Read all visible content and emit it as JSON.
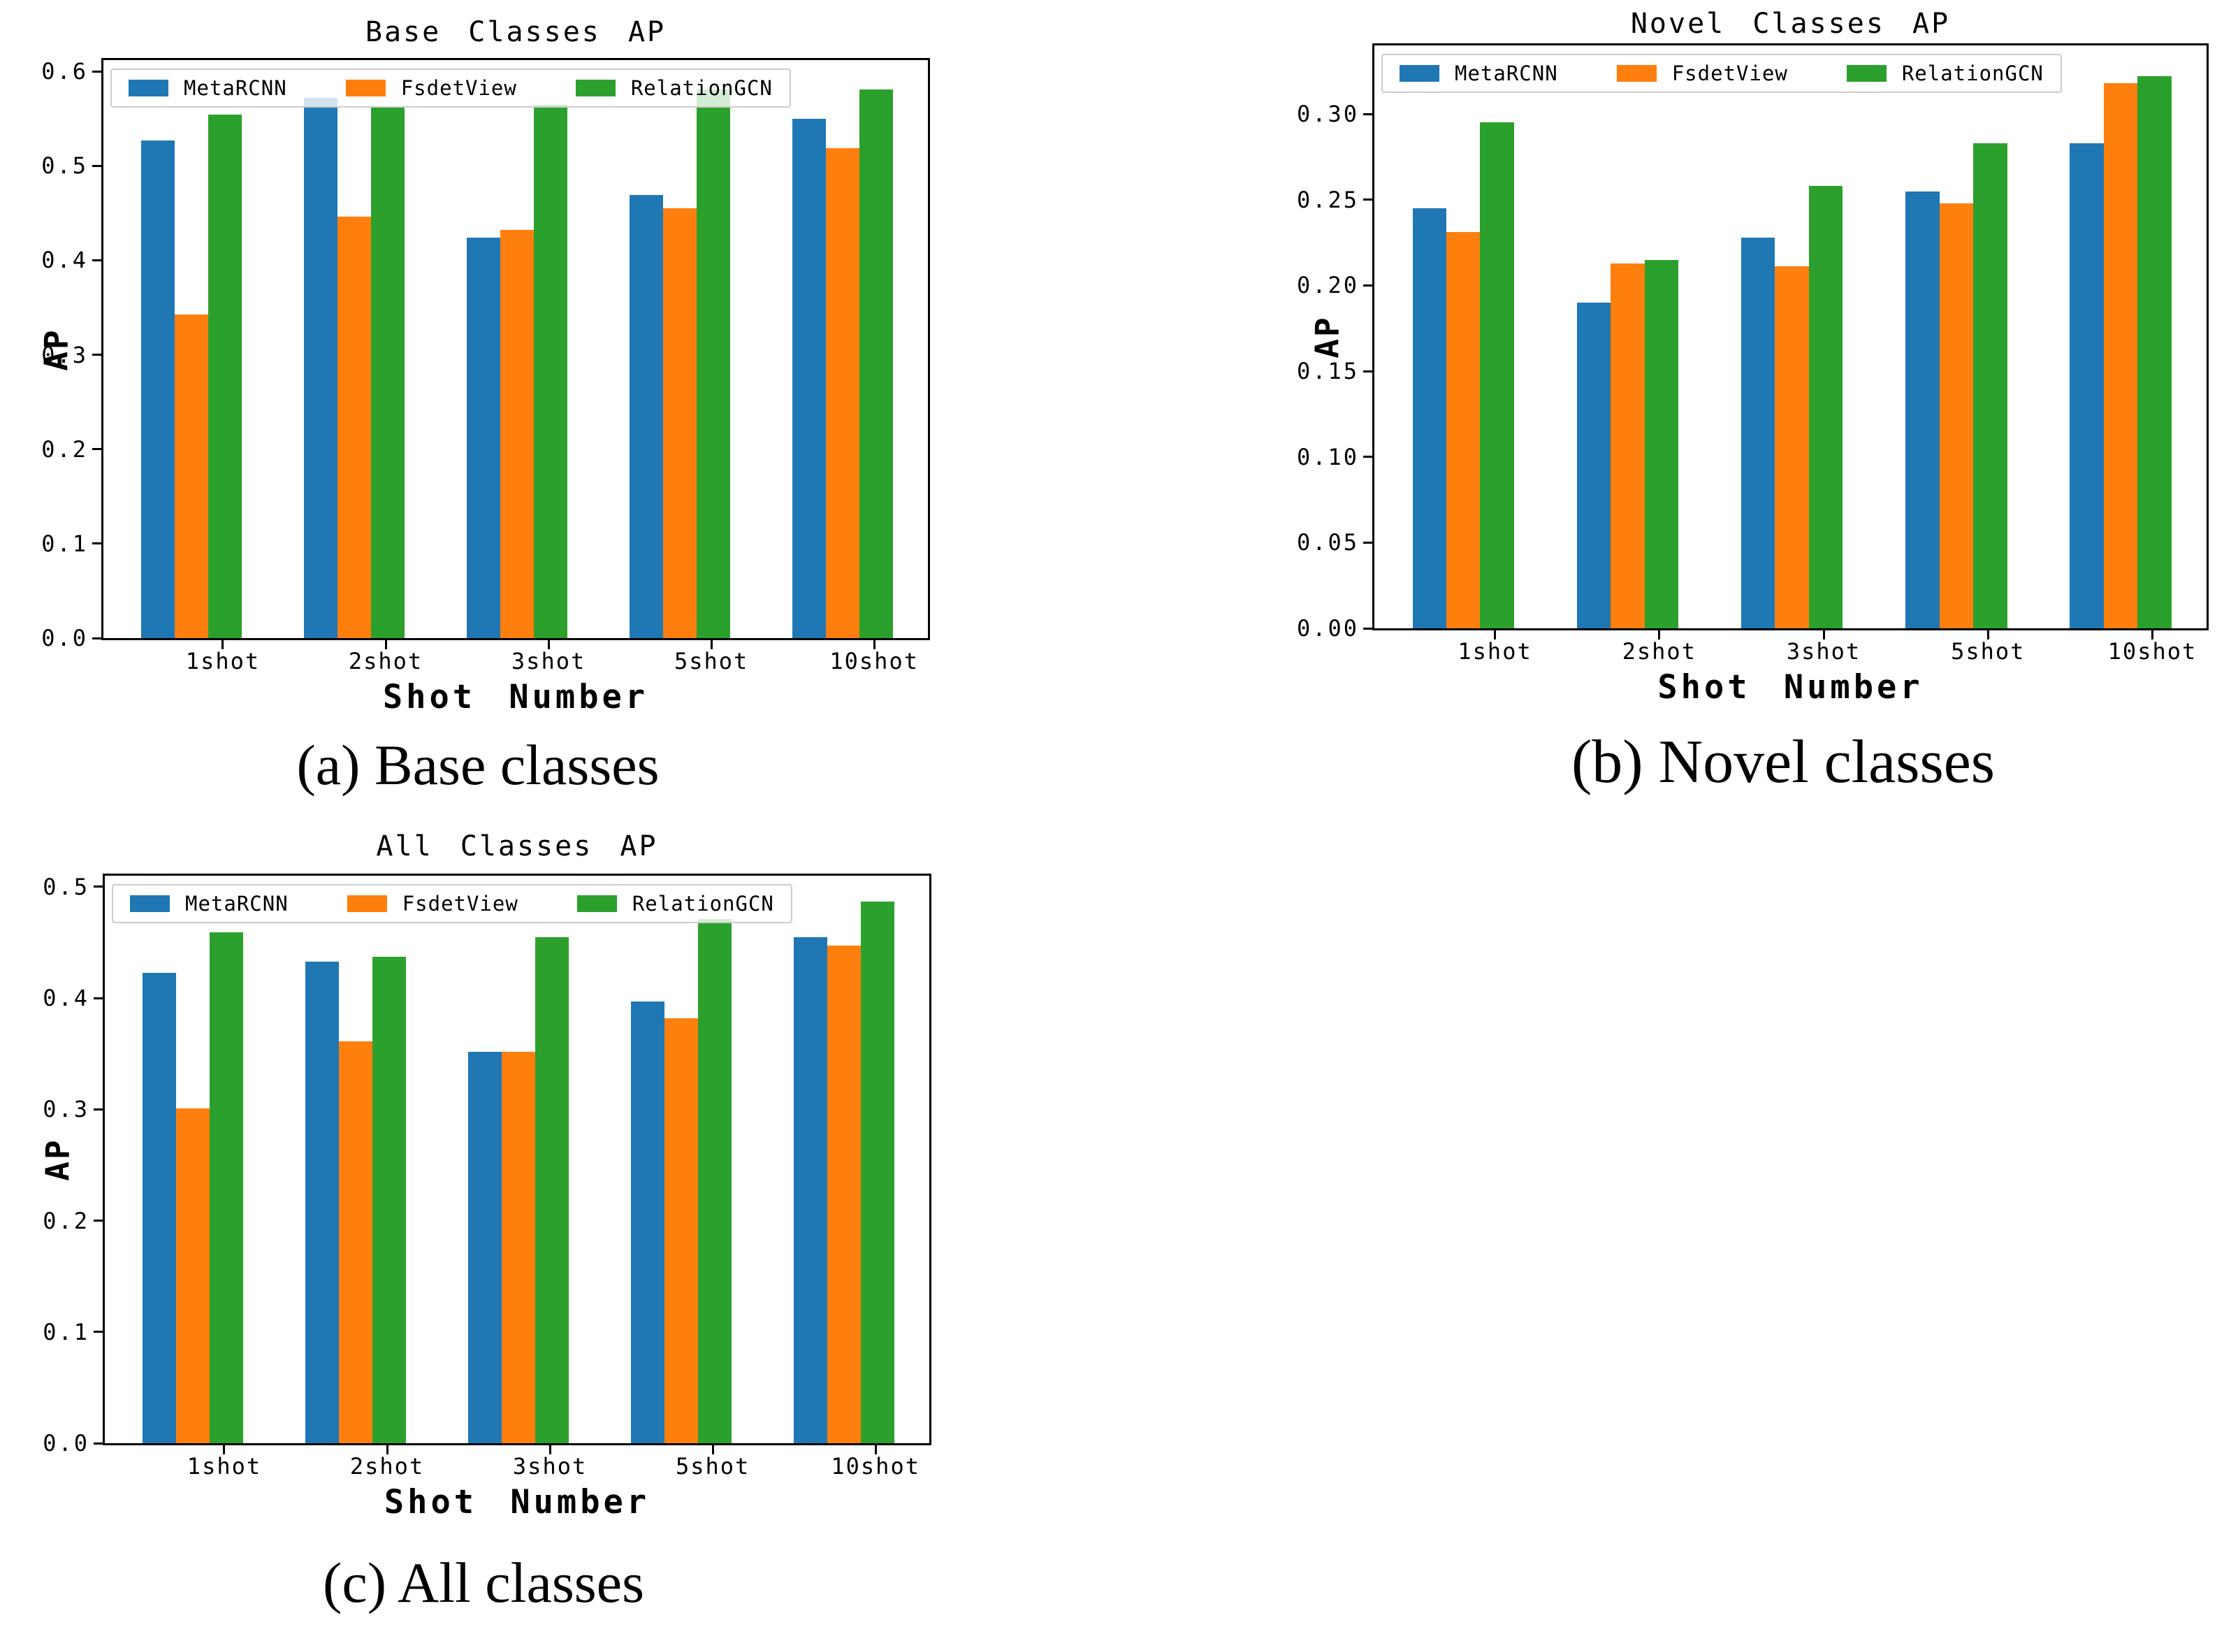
{
  "figure": {
    "captions": [
      {
        "id": "a",
        "label": "(a) Base classes"
      },
      {
        "id": "b",
        "label": "(b) Novel classes"
      },
      {
        "id": "c",
        "label": "(c) All classes"
      }
    ]
  },
  "chart_data": [
    {
      "type": "bar",
      "title": "Base Classes AP",
      "xlabel": "Shot Number",
      "ylabel": "AP",
      "categories": [
        "1shot",
        "2shot",
        "3shot",
        "5shot",
        "10shot"
      ],
      "series": [
        {
          "name": "MetaRCNN",
          "color": "#1f77b4",
          "values": [
            0.527,
            0.572,
            0.424,
            0.469,
            0.55
          ]
        },
        {
          "name": "FsdetView",
          "color": "#ff7f0e",
          "values": [
            0.343,
            0.446,
            0.432,
            0.455,
            0.519
          ]
        },
        {
          "name": "RelationGCN",
          "color": "#2ca02c",
          "values": [
            0.554,
            0.563,
            0.565,
            0.581,
            0.581
          ]
        }
      ],
      "ylim": [
        0,
        0.612
      ],
      "yticks": [
        0,
        0.1,
        0.2,
        0.3,
        0.4,
        0.5,
        0.6
      ],
      "ytick_labels": [
        "0.0",
        "0.1",
        "0.2",
        "0.3",
        "0.4",
        "0.5",
        "0.6"
      ],
      "legend_position": "upper left",
      "grid": false
    },
    {
      "type": "bar",
      "title": "Novel Classes AP",
      "xlabel": "Shot Number",
      "ylabel": "AP",
      "categories": [
        "1shot",
        "2shot",
        "3shot",
        "5shot",
        "10shot"
      ],
      "series": [
        {
          "name": "MetaRCNN",
          "color": "#1f77b4",
          "values": [
            0.245,
            0.19,
            0.228,
            0.255,
            0.283
          ]
        },
        {
          "name": "FsdetView",
          "color": "#ff7f0e",
          "values": [
            0.231,
            0.213,
            0.211,
            0.248,
            0.318
          ]
        },
        {
          "name": "RelationGCN",
          "color": "#2ca02c",
          "values": [
            0.295,
            0.215,
            0.258,
            0.283,
            0.322
          ]
        }
      ],
      "ylim": [
        0,
        0.34
      ],
      "yticks": [
        0,
        0.05,
        0.1,
        0.15,
        0.2,
        0.25,
        0.3
      ],
      "ytick_labels": [
        "0.00",
        "0.05",
        "0.10",
        "0.15",
        "0.20",
        "0.25",
        "0.30"
      ],
      "legend_position": "upper left",
      "grid": false
    },
    {
      "type": "bar",
      "title": "All Classes AP",
      "xlabel": "Shot Number",
      "ylabel": "AP",
      "categories": [
        "1shot",
        "2shot",
        "3shot",
        "5shot",
        "10shot"
      ],
      "series": [
        {
          "name": "MetaRCNN",
          "color": "#1f77b4",
          "values": [
            0.423,
            0.433,
            0.352,
            0.397,
            0.455
          ]
        },
        {
          "name": "FsdetView",
          "color": "#ff7f0e",
          "values": [
            0.301,
            0.361,
            0.352,
            0.382,
            0.447
          ]
        },
        {
          "name": "RelationGCN",
          "color": "#2ca02c",
          "values": [
            0.459,
            0.437,
            0.455,
            0.471,
            0.487
          ]
        }
      ],
      "ylim": [
        0,
        0.51
      ],
      "yticks": [
        0,
        0.1,
        0.2,
        0.3,
        0.4,
        0.5
      ],
      "ytick_labels": [
        "0.0",
        "0.1",
        "0.2",
        "0.3",
        "0.4",
        "0.5"
      ],
      "legend_position": "upper left",
      "grid": false
    }
  ]
}
